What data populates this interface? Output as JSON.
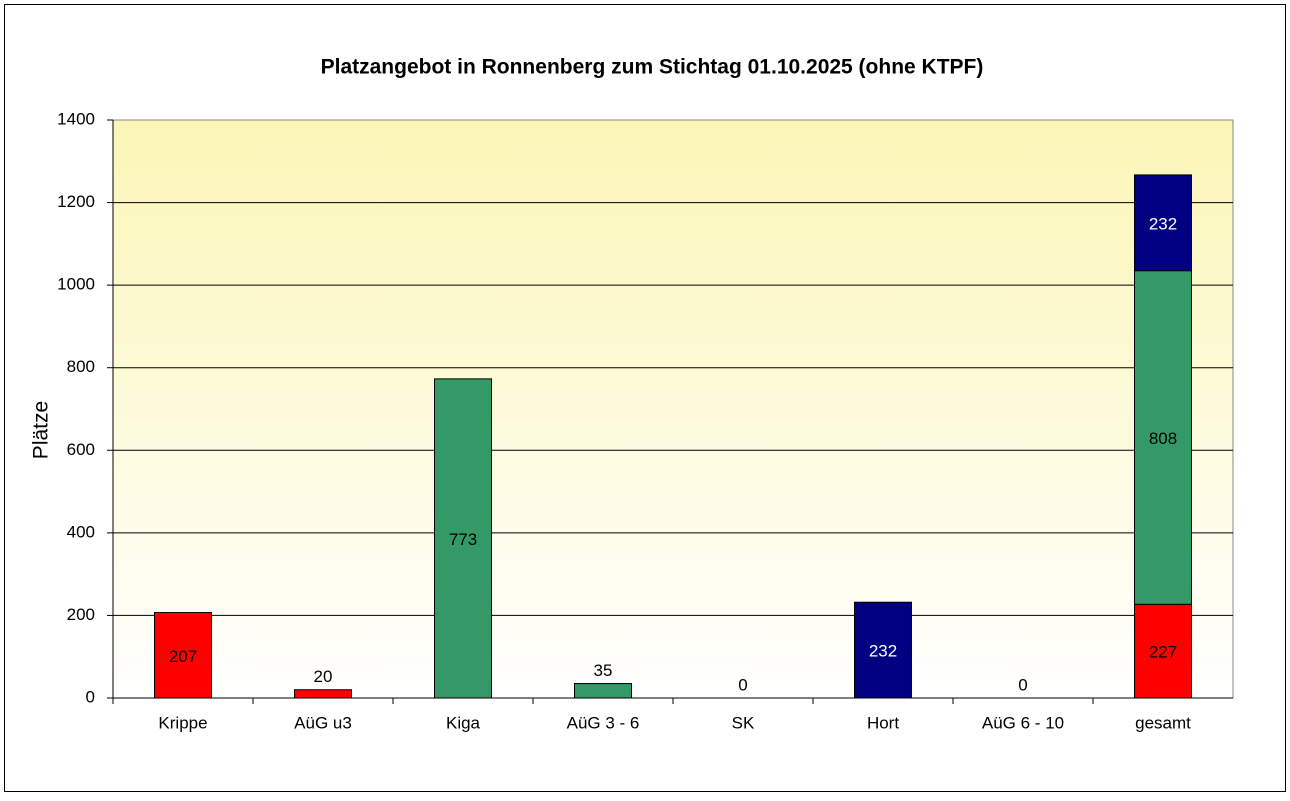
{
  "chart_data": {
    "type": "stacked_bar",
    "title": "Platzangebot in Ronnenberg zum Stichtag 01.10.2025 (ohne KTPF)",
    "y_label": "Plätze",
    "categories": [
      "Krippe",
      "AüG u3",
      "Kiga",
      "AüG 3 - 6",
      "SK",
      "Hort",
      "AüG 6 - 10",
      "gesamt"
    ],
    "series": [
      {
        "color": "#ff0000",
        "label_color": "#000000",
        "values": [
          207,
          20,
          null,
          null,
          null,
          null,
          null,
          227
        ]
      },
      {
        "color": "#339966",
        "label_color": "#000000",
        "values": [
          null,
          null,
          773,
          35,
          0,
          null,
          null,
          808
        ]
      },
      {
        "color": "#000080",
        "label_color": "#ffffff",
        "values": [
          null,
          null,
          null,
          null,
          null,
          232,
          0,
          232
        ]
      }
    ],
    "ylim": [
      0,
      1400
    ],
    "yticks": [
      0,
      200,
      400,
      600,
      800,
      1000,
      1200,
      1400
    ],
    "grid": true
  }
}
